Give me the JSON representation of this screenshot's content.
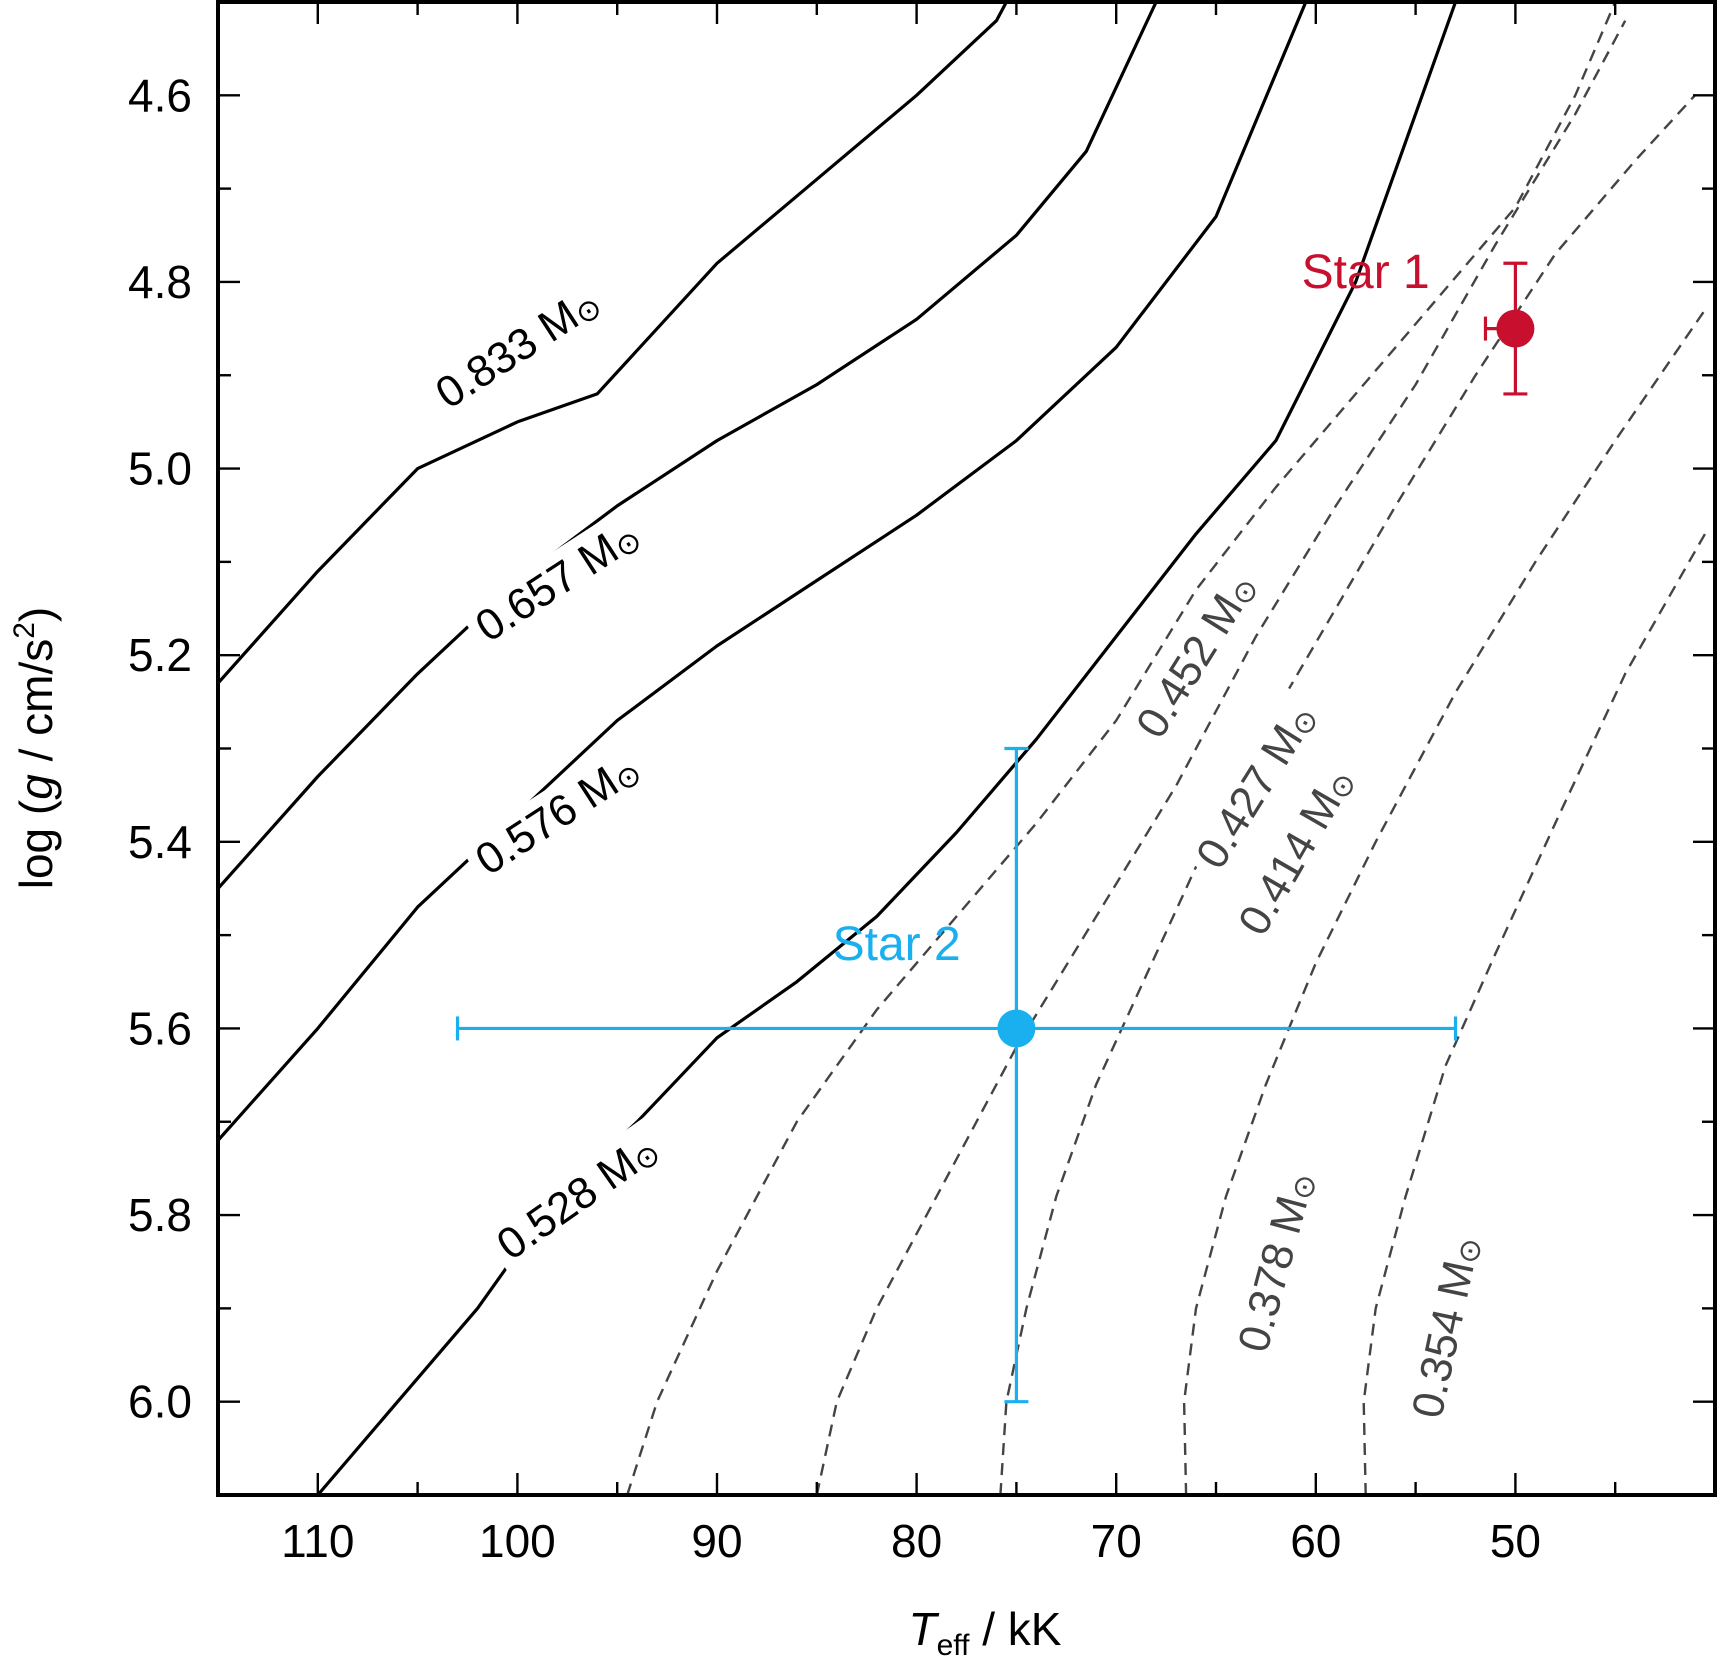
{
  "chart_data": {
    "type": "line",
    "title": "",
    "xlabel": {
      "main": "T",
      "sub": "eff",
      "rest": " / kK"
    },
    "ylabel": {
      "pre": "log (",
      "italic": "g",
      "mid": " / cm/s",
      "sup": "2",
      "post": ")"
    },
    "xlim": [
      115,
      40
    ],
    "ylim": [
      6.1,
      4.5
    ],
    "x_reversed": true,
    "y_reversed": true,
    "xticks": [
      110,
      100,
      90,
      80,
      70,
      60,
      50
    ],
    "xtick_labels": [
      "110",
      "100",
      "90",
      "80",
      "70",
      "60",
      "50"
    ],
    "yticks": [
      4.6,
      4.8,
      5.0,
      5.2,
      5.4,
      5.6,
      5.8,
      6.0
    ],
    "ytick_labels": [
      "4.6",
      "4.8",
      "5.0",
      "5.2",
      "5.4",
      "5.6",
      "5.8",
      "6.0"
    ],
    "grid": false,
    "mass_unit": "M",
    "sun_symbol": "⊙",
    "series": [
      {
        "name": "0.833",
        "style": "solid",
        "color": "#000000",
        "x": [
          115,
          110,
          105,
          100,
          96,
          90,
          85,
          80,
          76,
          75.5
        ],
        "y": [
          5.23,
          5.11,
          5.0,
          4.95,
          4.92,
          4.78,
          4.69,
          4.6,
          4.52,
          4.5
        ],
        "label": {
          "text": "0.833",
          "x": 100,
          "y": 4.87,
          "angle": -33
        }
      },
      {
        "name": "0.657",
        "style": "solid",
        "color": "#000000",
        "x": [
          115,
          110,
          105,
          100,
          95,
          90,
          85,
          80,
          75,
          71.5,
          68
        ],
        "y": [
          5.45,
          5.33,
          5.22,
          5.12,
          5.04,
          4.97,
          4.91,
          4.84,
          4.75,
          4.66,
          4.5
        ],
        "label": {
          "text": "0.657",
          "x": 98,
          "y": 5.12,
          "angle": -33
        }
      },
      {
        "name": "0.576",
        "style": "solid",
        "color": "#000000",
        "x": [
          115,
          110,
          105,
          100,
          95,
          90,
          85,
          80,
          75,
          70,
          65,
          60.5
        ],
        "y": [
          5.72,
          5.6,
          5.47,
          5.37,
          5.27,
          5.19,
          5.12,
          5.05,
          4.97,
          4.87,
          4.73,
          4.5
        ],
        "label": {
          "text": "0.576",
          "x": 98,
          "y": 5.37,
          "angle": -33
        }
      },
      {
        "name": "0.528",
        "style": "solid",
        "color": "#000000",
        "x": [
          110,
          106,
          102,
          98,
          94,
          90,
          86,
          82,
          78,
          74,
          70,
          66,
          62,
          58,
          53
        ],
        "y": [
          6.1,
          6.0,
          5.9,
          5.78,
          5.7,
          5.61,
          5.55,
          5.48,
          5.39,
          5.29,
          5.18,
          5.07,
          4.97,
          4.8,
          4.5
        ],
        "label": {
          "text": "0.528",
          "x": 97,
          "y": 5.78,
          "angle": -35
        }
      },
      {
        "name": "0.452",
        "style": "dashed",
        "color": "#444444",
        "x": [
          94.5,
          93,
          90,
          86,
          82,
          78,
          74,
          70,
          66,
          62,
          58,
          54,
          50,
          47,
          45
        ],
        "y": [
          6.1,
          6.0,
          5.86,
          5.7,
          5.58,
          5.48,
          5.38,
          5.27,
          5.13,
          5.02,
          4.92,
          4.82,
          4.72,
          4.6,
          4.5
        ],
        "label": {
          "text": "0.452",
          "x": 66,
          "y": 5.2,
          "angle": -58
        }
      },
      {
        "name": "0.427",
        "style": "dashed",
        "color": "#444444",
        "x": [
          85,
          84,
          82,
          79,
          75,
          71,
          67,
          63,
          59,
          55,
          51,
          47,
          44.5
        ],
        "y": [
          6.1,
          6.0,
          5.9,
          5.78,
          5.62,
          5.48,
          5.34,
          5.18,
          5.04,
          4.91,
          4.76,
          4.62,
          4.52
        ],
        "label": {
          "text": "0.427",
          "x": 63,
          "y": 5.34,
          "angle": -58
        }
      },
      {
        "name": "0.414",
        "style": "dashed",
        "color": "#444444",
        "x": [
          75.8,
          75.5,
          74.5,
          73,
          71,
          68,
          65,
          62,
          59,
          56,
          52,
          48,
          44,
          41
        ],
        "y": [
          6.1,
          6.0,
          5.9,
          5.78,
          5.66,
          5.52,
          5.38,
          5.26,
          5.15,
          5.04,
          4.9,
          4.77,
          4.67,
          4.6
        ],
        "label": {
          "text": "0.414",
          "x": 61,
          "y": 5.41,
          "angle": -60
        }
      },
      {
        "name": "0.378",
        "style": "dashed",
        "color": "#444444",
        "x": [
          66.5,
          66.6,
          66,
          64.5,
          62.5,
          60,
          57,
          53,
          49,
          45,
          40.5
        ],
        "y": [
          6.1,
          6.0,
          5.9,
          5.78,
          5.66,
          5.53,
          5.4,
          5.24,
          5.1,
          4.97,
          4.83
        ],
        "label": {
          "text": "0.378",
          "x": 62,
          "y": 5.85,
          "angle": -75
        }
      },
      {
        "name": "0.354",
        "style": "dashed",
        "color": "#444444",
        "x": [
          57.5,
          57.6,
          57,
          55.5,
          53.5,
          51,
          48,
          44.5,
          40.5
        ],
        "y": [
          6.1,
          6.0,
          5.9,
          5.78,
          5.64,
          5.52,
          5.38,
          5.22,
          5.07
        ],
        "label": {
          "text": "0.354",
          "x": 53.5,
          "y": 5.92,
          "angle": -78
        }
      }
    ],
    "points": [
      {
        "name": "Star 1",
        "color": "#c8102e",
        "x": 50,
        "y": 4.85,
        "x_err": [
          1.5,
          0
        ],
        "y_err": [
          0.07,
          0.07
        ],
        "label": {
          "text": "Star 1",
          "x": 57.5,
          "y": 4.79
        }
      },
      {
        "name": "Star 2",
        "color": "#1ab0ef",
        "x": 75,
        "y": 5.6,
        "x_err": [
          28,
          22
        ],
        "y_err": [
          0.3,
          0.4
        ],
        "label": {
          "text": "Star 2",
          "x": 81,
          "y": 5.51
        }
      }
    ]
  }
}
